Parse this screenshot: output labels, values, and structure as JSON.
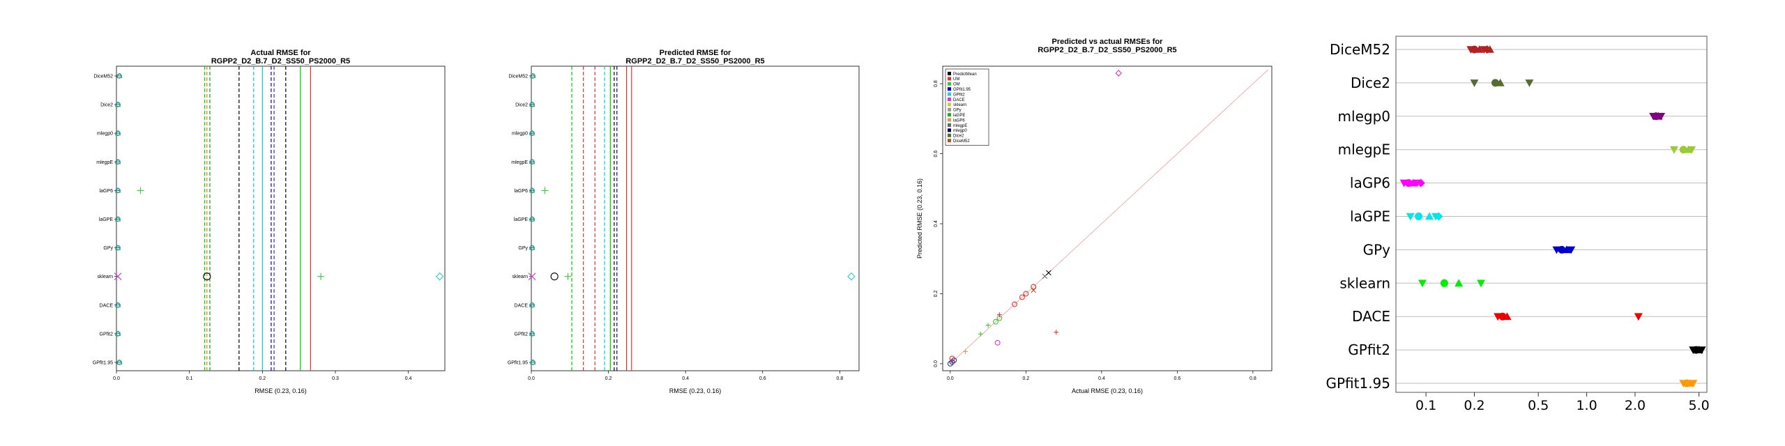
{
  "chart_data": [
    {
      "type": "scatter",
      "title": "Actual RMSE for\nRGPP2_D2_B.7_D2_SS50_PS2000_R5",
      "xlabel": "RMSE (0.23, 0.16)",
      "xlim": [
        0,
        0.45
      ],
      "x_ticks": [
        "0.0",
        "0.1",
        "0.2",
        "0.3",
        "0.4"
      ],
      "x_tick_values": [
        0,
        0.1,
        0.2,
        0.3,
        0.4
      ],
      "categories": [
        "DiceM52",
        "Dice2",
        "mlegp0",
        "mlegpE",
        "laGP6",
        "laGPE",
        "GPy",
        "sklearn",
        "DACE",
        "GPfit2",
        "GPfit1.95"
      ],
      "vlines": [
        {
          "value": 0.121,
          "color": "#00cc00"
        },
        {
          "value": 0.124,
          "color": "#cc8800"
        },
        {
          "value": 0.128,
          "color": "#00aa00"
        },
        {
          "value": 0.168,
          "color": "#000000"
        },
        {
          "value": 0.188,
          "color": "#00cccc"
        },
        {
          "value": 0.2,
          "color": "#00cccc",
          "solid": true
        },
        {
          "value": 0.212,
          "color": "#0000cc"
        },
        {
          "value": 0.216,
          "color": "#3333aa"
        },
        {
          "value": 0.232,
          "color": "#000000"
        },
        {
          "value": 0.252,
          "color": "#00cc00",
          "solid": true
        },
        {
          "value": 0.266,
          "color": "#ee3333",
          "solid": true
        }
      ],
      "points": [
        {
          "y": "DiceM52",
          "x": 0.004,
          "color": "#3399cc",
          "marker": "cluster"
        },
        {
          "y": "Dice2",
          "x": 0.002,
          "color": "#3399cc",
          "marker": "cluster"
        },
        {
          "y": "mlegp0",
          "x": 0.002,
          "color": "#3399cc",
          "marker": "cluster"
        },
        {
          "y": "mlegpE",
          "x": 0.002,
          "color": "#3399cc",
          "marker": "cluster"
        },
        {
          "y": "laGP6",
          "x": 0.002,
          "color": "#3399cc",
          "marker": "cluster"
        },
        {
          "y": "laGP6",
          "x": 0.033,
          "color": "#33cc33",
          "marker": "plus"
        },
        {
          "y": "laGPE",
          "x": 0.002,
          "color": "#3399cc",
          "marker": "cluster"
        },
        {
          "y": "GPy",
          "x": 0.002,
          "color": "#3399cc",
          "marker": "cluster"
        },
        {
          "y": "sklearn",
          "x": 0.002,
          "color": "#cc33cc",
          "marker": "x"
        },
        {
          "y": "sklearn",
          "x": 0.124,
          "color": "#000000",
          "marker": "circle"
        },
        {
          "y": "sklearn",
          "x": 0.28,
          "color": "#33cc33",
          "marker": "plus"
        },
        {
          "y": "sklearn",
          "x": 0.443,
          "color": "#33cccc",
          "marker": "diamond"
        },
        {
          "y": "DACE",
          "x": 0.002,
          "color": "#3399cc",
          "marker": "cluster"
        },
        {
          "y": "GPfit2",
          "x": 0.002,
          "color": "#3399cc",
          "marker": "cluster"
        },
        {
          "y": "GPfit1.95",
          "x": 0.004,
          "color": "#3399cc",
          "marker": "cluster"
        }
      ]
    },
    {
      "type": "scatter",
      "title": "Predicted RMSE for\nRGPP2_D2_B.7_D2_SS50_PS2000_R5",
      "xlabel": "RMSE (0.23, 0.16)",
      "xlim": [
        0,
        0.85
      ],
      "x_ticks": [
        "0.0",
        "0.2",
        "0.4",
        "0.6",
        "0.8"
      ],
      "x_tick_values": [
        0,
        0.2,
        0.4,
        0.6,
        0.8
      ],
      "categories": [
        "DiceM52",
        "Dice2",
        "mlegp0",
        "mlegpE",
        "laGP6",
        "laGPE",
        "GPy",
        "sklearn",
        "DACE",
        "GPfit2",
        "GPfit1.95"
      ],
      "vlines": [
        {
          "value": 0.105,
          "color": "#00cc00"
        },
        {
          "value": 0.135,
          "color": "#cc3333"
        },
        {
          "value": 0.165,
          "color": "#cc3333"
        },
        {
          "value": 0.19,
          "color": "#00cccc"
        },
        {
          "value": 0.205,
          "color": "#00cc00",
          "solid": true
        },
        {
          "value": 0.215,
          "color": "#000000"
        },
        {
          "value": 0.222,
          "color": "#0000cc"
        },
        {
          "value": 0.247,
          "color": "#cc3333",
          "solid": true
        },
        {
          "value": 0.26,
          "color": "#ee3333",
          "solid": true
        }
      ],
      "points": [
        {
          "y": "DiceM52",
          "x": 0.004,
          "color": "#3399cc",
          "marker": "cluster"
        },
        {
          "y": "Dice2",
          "x": 0.002,
          "color": "#3399cc",
          "marker": "cluster"
        },
        {
          "y": "mlegp0",
          "x": 0.002,
          "color": "#3399cc",
          "marker": "cluster"
        },
        {
          "y": "mlegpE",
          "x": 0.002,
          "color": "#3399cc",
          "marker": "cluster"
        },
        {
          "y": "laGP6",
          "x": 0.002,
          "color": "#3399cc",
          "marker": "cluster"
        },
        {
          "y": "laGP6",
          "x": 0.035,
          "color": "#33cc33",
          "marker": "plus"
        },
        {
          "y": "laGPE",
          "x": 0.002,
          "color": "#3399cc",
          "marker": "cluster"
        },
        {
          "y": "GPy",
          "x": 0.002,
          "color": "#3399cc",
          "marker": "cluster"
        },
        {
          "y": "sklearn",
          "x": 0.002,
          "color": "#cc33cc",
          "marker": "x"
        },
        {
          "y": "sklearn",
          "x": 0.06,
          "color": "#000000",
          "marker": "circle"
        },
        {
          "y": "sklearn",
          "x": 0.095,
          "color": "#33cc33",
          "marker": "plus"
        },
        {
          "y": "sklearn",
          "x": 0.83,
          "color": "#33cccc",
          "marker": "diamond"
        },
        {
          "y": "DACE",
          "x": 0.002,
          "color": "#3399cc",
          "marker": "cluster"
        },
        {
          "y": "GPfit2",
          "x": 0.002,
          "color": "#3399cc",
          "marker": "cluster"
        },
        {
          "y": "GPfit1.95",
          "x": 0.004,
          "color": "#3399cc",
          "marker": "cluster"
        }
      ]
    },
    {
      "type": "scatter",
      "title": "Predicted vs actual RMSEs for\nRGPP2_D2_B.7_D2_SS50_PS2000_R5",
      "xlabel": "Actual RMSE (0.23, 0.16)",
      "ylabel": "Predicted RMSE (0.23, 0.16)",
      "xlim": [
        -0.02,
        0.85
      ],
      "ylim": [
        -0.02,
        0.85
      ],
      "x_ticks": [
        "0.0",
        "0.2",
        "0.4",
        "0.6",
        "0.8"
      ],
      "y_ticks": [
        "0.0",
        "0.2",
        "0.4",
        "0.6",
        "0.8"
      ],
      "tick_values": [
        0,
        0.2,
        0.4,
        0.6,
        0.8
      ],
      "legend_position": "top-left",
      "legend": [
        {
          "name": "PredictMean",
          "color": "#000000"
        },
        {
          "name": "UM",
          "color": "#dd3333"
        },
        {
          "name": "OM",
          "color": "#33cc33"
        },
        {
          "name": "GPfit1.95",
          "color": "#0000cc"
        },
        {
          "name": "GPfit2",
          "color": "#33cccc"
        },
        {
          "name": "DACE",
          "color": "#dd33dd"
        },
        {
          "name": "sklearn",
          "color": "#cccc33"
        },
        {
          "name": "GPy",
          "color": "#999999"
        },
        {
          "name": "laGPE",
          "color": "#22aa22"
        },
        {
          "name": "laGP6",
          "color": "#dd9955"
        },
        {
          "name": "mlegpE",
          "color": "#666666"
        },
        {
          "name": "mlegp0",
          "color": "#000055"
        },
        {
          "name": "Dice2",
          "color": "#447722"
        },
        {
          "name": "DiceM52",
          "color": "#aa5522"
        }
      ],
      "points": [
        {
          "x": 0.0,
          "y": 0.0,
          "color": "#333399",
          "marker": "circle"
        },
        {
          "x": 0.005,
          "y": 0.005,
          "color": "#333399",
          "marker": "circle"
        },
        {
          "x": 0.01,
          "y": 0.01,
          "color": "#333399",
          "marker": "circle"
        },
        {
          "x": 0.005,
          "y": 0.015,
          "color": "#dd3333",
          "marker": "circle"
        },
        {
          "x": 0.04,
          "y": 0.035,
          "color": "#dd9955",
          "marker": "plus"
        },
        {
          "x": 0.08,
          "y": 0.085,
          "color": "#33cc33",
          "marker": "plus"
        },
        {
          "x": 0.1,
          "y": 0.11,
          "color": "#33cc33",
          "marker": "plus"
        },
        {
          "x": 0.12,
          "y": 0.12,
          "color": "#33cc33",
          "marker": "circle"
        },
        {
          "x": 0.13,
          "y": 0.13,
          "color": "#33cc33",
          "marker": "circle"
        },
        {
          "x": 0.13,
          "y": 0.14,
          "color": "#dd3333",
          "marker": "plus"
        },
        {
          "x": 0.125,
          "y": 0.06,
          "color": "#dd33dd",
          "marker": "circle"
        },
        {
          "x": 0.17,
          "y": 0.17,
          "color": "#dd3333",
          "marker": "circle"
        },
        {
          "x": 0.19,
          "y": 0.19,
          "color": "#dd3333",
          "marker": "circle"
        },
        {
          "x": 0.2,
          "y": 0.2,
          "color": "#dd3333",
          "marker": "circle"
        },
        {
          "x": 0.22,
          "y": 0.21,
          "color": "#aa5522",
          "marker": "x"
        },
        {
          "x": 0.22,
          "y": 0.22,
          "color": "#dd3333",
          "marker": "circle"
        },
        {
          "x": 0.25,
          "y": 0.25,
          "color": "#666666",
          "marker": "x"
        },
        {
          "x": 0.26,
          "y": 0.26,
          "color": "#000000",
          "marker": "x"
        },
        {
          "x": 0.28,
          "y": 0.09,
          "color": "#dd3333",
          "marker": "plus"
        },
        {
          "x": 0.445,
          "y": 0.83,
          "color": "#dd33dd",
          "marker": "diamond"
        }
      ]
    },
    {
      "type": "scatter",
      "xscale": "log",
      "xlim": [
        0.065,
        5.6
      ],
      "x_ticks": [
        "0.1",
        "0.2",
        "0.5",
        "1.0",
        "2.0",
        "5.0"
      ],
      "x_tick_values": [
        0.1,
        0.2,
        0.5,
        1.0,
        2.0,
        5.0
      ],
      "grid": "horizontal",
      "categories": [
        "DiceM52",
        "Dice2",
        "mlegp0",
        "mlegpE",
        "laGP6",
        "laGPE",
        "GPy",
        "sklearn",
        "DACE",
        "GPfit2",
        "GPfit1.95"
      ],
      "points": [
        {
          "y": "DiceM52",
          "values": [
            0.19,
            0.2,
            0.215,
            0.23,
            0.24,
            0.25
          ],
          "color": "#b22222",
          "marker": "mix"
        },
        {
          "y": "Dice2",
          "values": [
            0.2,
            0.27,
            0.29,
            0.44
          ],
          "color": "#556b2f",
          "marker": "mix"
        },
        {
          "y": "mlegp0",
          "values": [
            2.6,
            2.7,
            2.8,
            2.9
          ],
          "color": "#800080",
          "marker": "mix"
        },
        {
          "y": "mlegpE",
          "values": [
            3.5,
            4.0,
            4.3,
            4.5
          ],
          "color": "#99cc33",
          "marker": "mix"
        },
        {
          "y": "laGP6",
          "values": [
            0.073,
            0.078,
            0.083,
            0.088,
            0.093
          ],
          "color": "#ff00ff",
          "marker": "mix"
        },
        {
          "y": "laGPE",
          "values": [
            0.08,
            0.09,
            0.105,
            0.115,
            0.12
          ],
          "color": "#00e5ee",
          "marker": "mix"
        },
        {
          "y": "GPy",
          "values": [
            0.65,
            0.7,
            0.75,
            0.8
          ],
          "color": "#0000cd",
          "marker": "mix"
        },
        {
          "y": "sklearn",
          "values": [
            0.095,
            0.13,
            0.16,
            0.22
          ],
          "color": "#00ee00",
          "marker": "mix"
        },
        {
          "y": "DACE",
          "values": [
            0.28,
            0.3,
            0.32,
            2.1
          ],
          "color": "#ee0000",
          "marker": "mix"
        },
        {
          "y": "GPfit2",
          "values": [
            4.6,
            4.8,
            5.0,
            5.2
          ],
          "color": "#000000",
          "marker": "mix"
        },
        {
          "y": "GPfit1.95",
          "values": [
            4.0,
            4.2,
            4.4,
            4.6
          ],
          "color": "#ff9900",
          "marker": "mix"
        }
      ]
    }
  ]
}
